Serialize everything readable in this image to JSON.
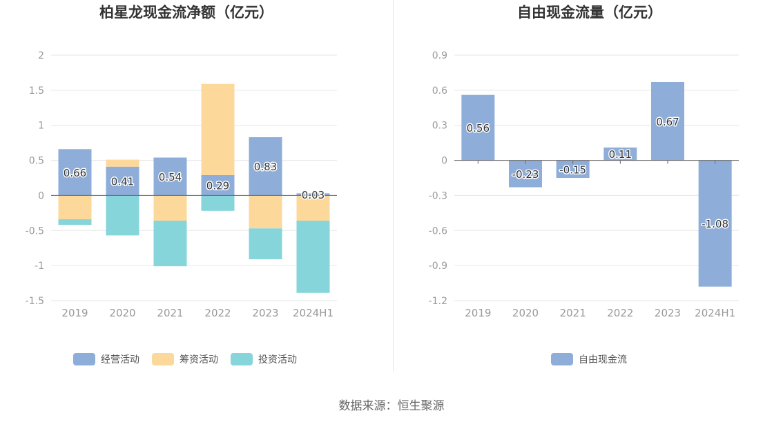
{
  "colors": {
    "operating": "#8eadd9",
    "financing": "#fdd89b",
    "investing": "#86d5da",
    "axis_text": "#999999",
    "title_text": "#333333",
    "grid": "#e6e6e6",
    "zero_line": "#666666"
  },
  "source": "数据来源：恒生聚源",
  "chart_data": [
    {
      "type": "bar",
      "stacked": true,
      "title": "柏星龙现金流净额（亿元）",
      "categories": [
        "2019",
        "2020",
        "2021",
        "2022",
        "2023",
        "2024H1"
      ],
      "ylim": [
        -1.5,
        2
      ],
      "yticks": [
        -1.5,
        -1,
        -0.5,
        0,
        0.5,
        1,
        1.5,
        2
      ],
      "ytick_labels": [
        "-1.5",
        "-1",
        "-0.5",
        "0",
        "0.5",
        "1",
        "1.5",
        "2"
      ],
      "grid": true,
      "legend_position": "bottom",
      "series": [
        {
          "name": "经营活动",
          "color_key": "operating",
          "values": [
            0.66,
            0.41,
            0.54,
            0.29,
            0.83,
            0.03
          ],
          "labels": [
            "0.66",
            "0.41",
            "0.54",
            "0.29",
            "0.83",
            "0.03"
          ]
        },
        {
          "name": "筹资活动",
          "color_key": "financing",
          "values": [
            -0.34,
            0.1,
            -0.36,
            1.3,
            -0.47,
            -0.36
          ]
        },
        {
          "name": "投资活动",
          "color_key": "investing",
          "values": [
            -0.08,
            -0.57,
            -0.65,
            -0.22,
            -0.44,
            -1.03
          ]
        }
      ]
    },
    {
      "type": "bar",
      "title": "自由现金流量（亿元）",
      "categories": [
        "2019",
        "2020",
        "2021",
        "2022",
        "2023",
        "2024H1"
      ],
      "ylim": [
        -1.2,
        0.9
      ],
      "yticks": [
        -1.2,
        -0.9,
        -0.6,
        -0.3,
        0,
        0.3,
        0.6,
        0.9
      ],
      "ytick_labels": [
        "-1.2",
        "-0.9",
        "-0.6",
        "-0.3",
        "0",
        "0.3",
        "0.6",
        "0.9"
      ],
      "grid": true,
      "legend_position": "bottom",
      "series": [
        {
          "name": "自由现金流",
          "color_key": "operating",
          "values": [
            0.56,
            -0.23,
            -0.15,
            0.11,
            0.67,
            -1.08
          ],
          "labels": [
            "0.56",
            "-0.23",
            "-0.15",
            "0.11",
            "0.67",
            "-1.08"
          ]
        }
      ]
    }
  ]
}
